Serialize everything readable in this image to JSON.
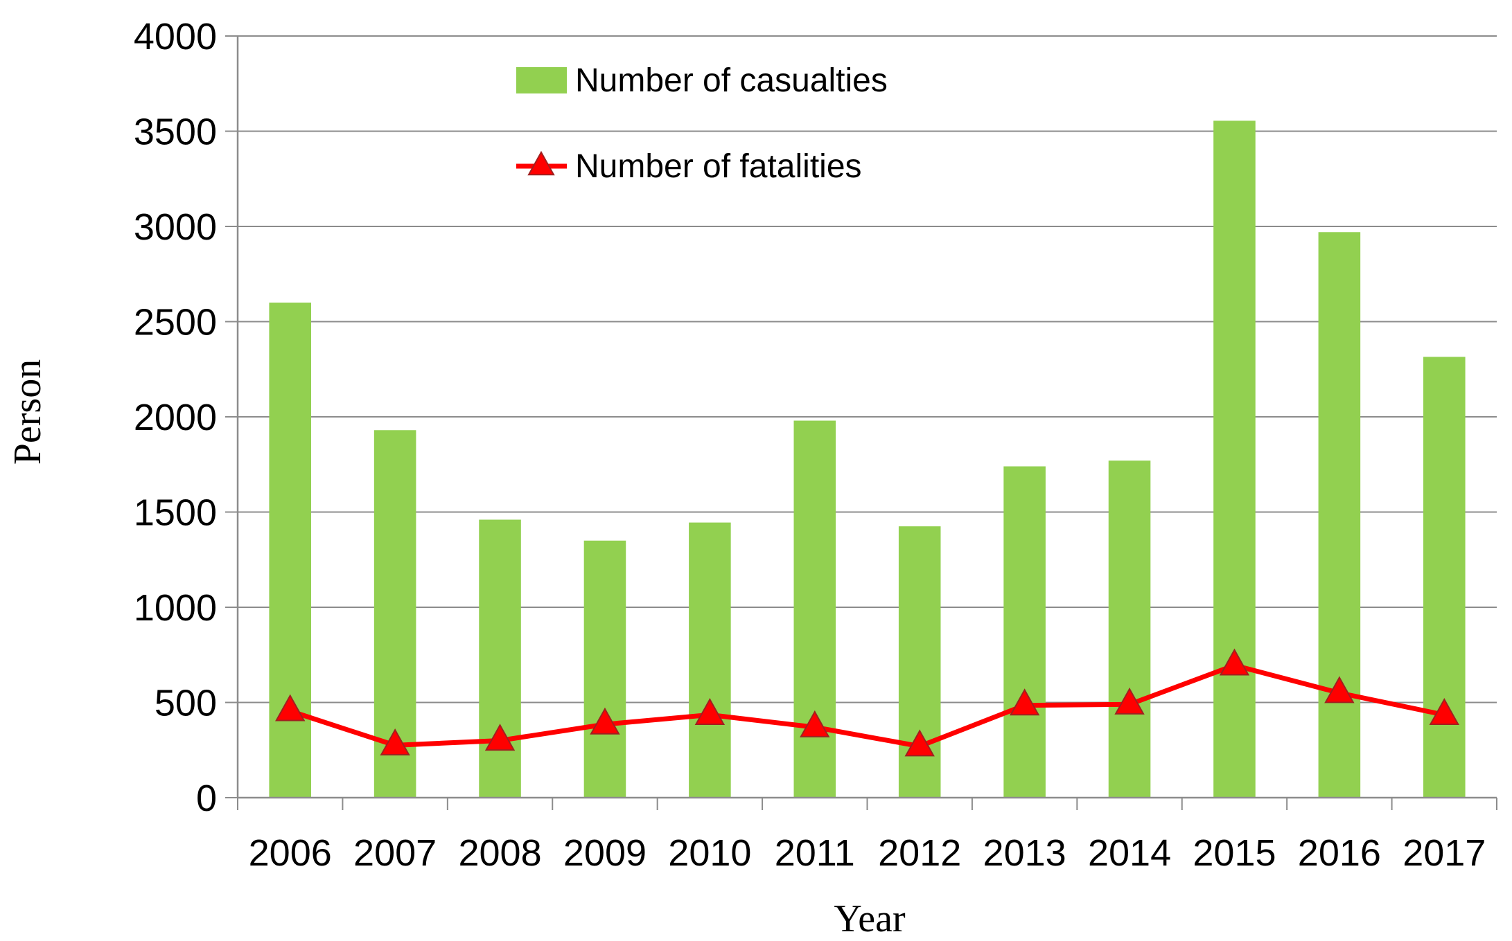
{
  "chart_data": {
    "type": "bar",
    "title": "",
    "xlabel": "Year",
    "ylabel": "Person",
    "ylim": [
      0,
      4000
    ],
    "yticks": [
      0,
      500,
      1000,
      1500,
      2000,
      2500,
      3000,
      3500,
      4000
    ],
    "grid": true,
    "legend_position": "top-center",
    "categories": [
      "2006",
      "2007",
      "2008",
      "2009",
      "2010",
      "2011",
      "2012",
      "2013",
      "2014",
      "2015",
      "2016",
      "2017"
    ],
    "series": [
      {
        "name": "Number of casualties",
        "kind": "bar",
        "color": "#92D050",
        "values": [
          2600,
          1930,
          1460,
          1350,
          1445,
          1980,
          1425,
          1740,
          1770,
          3555,
          2970,
          2315
        ]
      },
      {
        "name": "Number of fatalities",
        "kind": "line",
        "marker": "triangle",
        "color": "#FF0000",
        "values": [
          455,
          275,
          300,
          385,
          435,
          370,
          270,
          485,
          490,
          695,
          550,
          435
        ]
      }
    ]
  }
}
